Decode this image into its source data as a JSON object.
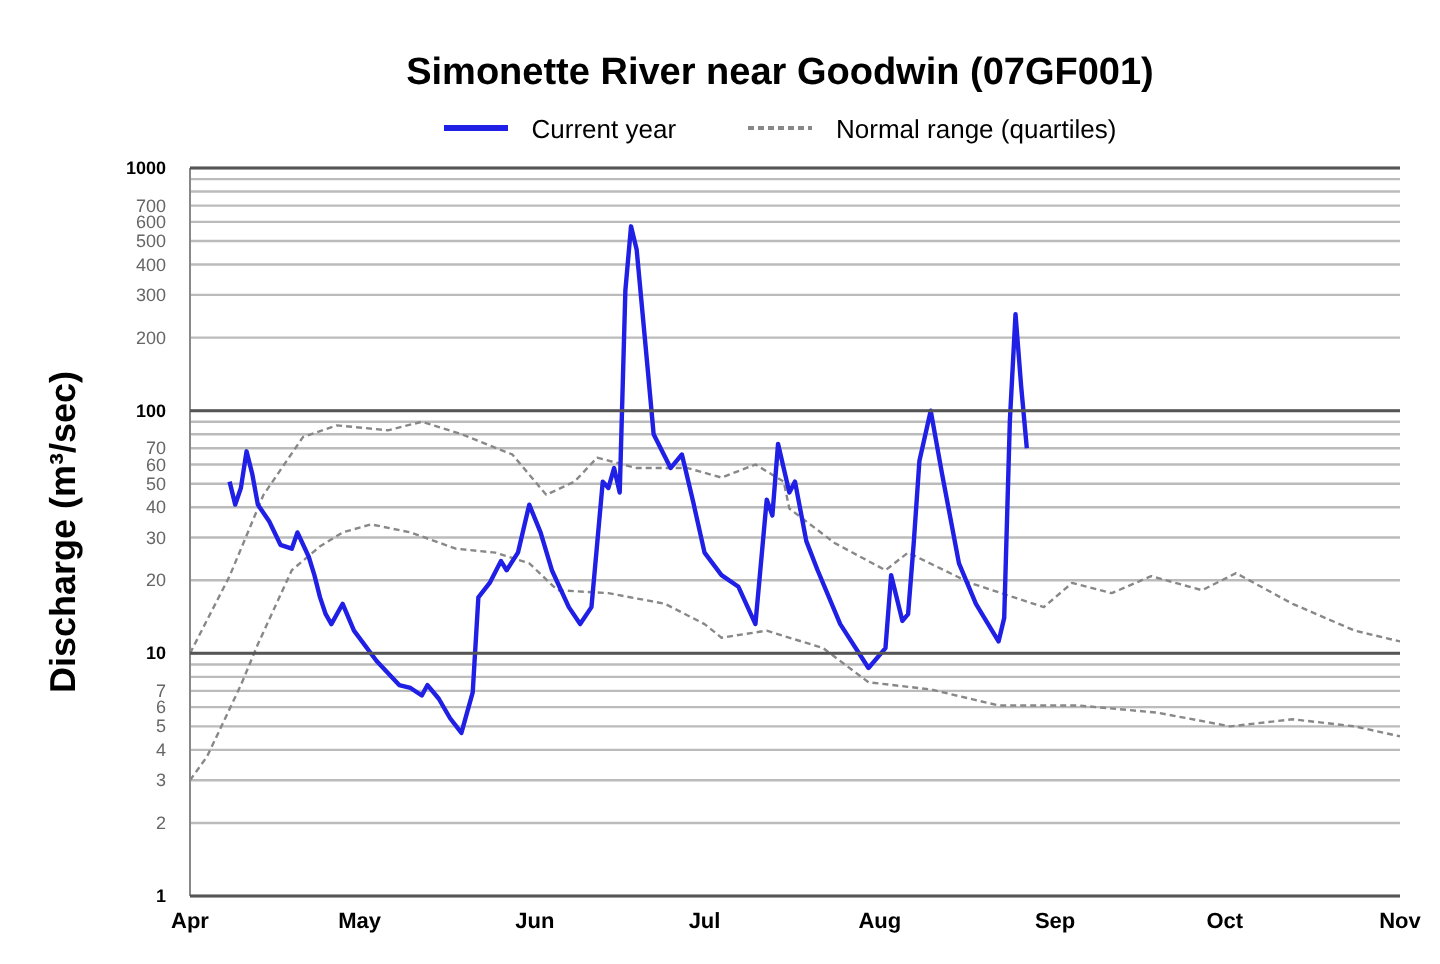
{
  "chart_data": {
    "type": "line",
    "title": "Simonette River near Goodwin (07GF001)",
    "ylabel": "Discharge (m³/sec)",
    "log": true,
    "grid": "y",
    "legend": "top",
    "marker": "none",
    "xlim": [
      "--04-01",
      "--11-01"
    ],
    "xticks": [
      {
        "value": "--04-01",
        "label": "Apr"
      },
      {
        "value": "--05-01",
        "label": "May"
      },
      {
        "value": "--06-01",
        "label": "Jun"
      },
      {
        "value": "--07-01",
        "label": "Jul"
      },
      {
        "value": "--08-01",
        "label": "Aug"
      },
      {
        "value": "--09-01",
        "label": "Sep"
      },
      {
        "value": "--10-01",
        "label": "Oct"
      },
      {
        "value": "--11-01",
        "label": "Nov"
      }
    ],
    "ylim": [
      1,
      1000
    ],
    "yticks": [
      1,
      2,
      3,
      4,
      5,
      6,
      7,
      {
        "value": 8,
        "label": null
      },
      {
        "value": 9,
        "label": null
      },
      10,
      20,
      30,
      40,
      50,
      60,
      70,
      {
        "value": 80,
        "label": null
      },
      {
        "value": 90,
        "label": null
      },
      100,
      200,
      300,
      400,
      500,
      600,
      700,
      {
        "value": 800,
        "label": null
      },
      {
        "value": 900,
        "label": null
      },
      1000
    ],
    "series": [
      {
        "name": "Normal range (quartiles)",
        "color": "#888888",
        "line_style": "dashed",
        "x": [
          "--04-01",
          "--04-08",
          "--04-14",
          "--04-21",
          "--04-27",
          "--05-06",
          "--05-12",
          "--05-19",
          "--05-28",
          "--06-03",
          "--06-08",
          "--06-12",
          "--06-19",
          "--06-28",
          "--07-04",
          "--07-10",
          "--07-15",
          "--07-16",
          "--07-24",
          "--08-02",
          "--08-06",
          "--08-17",
          "--08-30",
          "--09-04",
          "--09-11",
          "--09-18",
          "--09-27",
          "--10-03",
          "--10-13",
          "--10-24",
          "--11-01"
        ],
        "values": [
          10,
          20.8,
          45,
          78,
          87,
          83,
          90,
          80,
          66,
          45,
          51,
          64,
          58,
          58,
          53,
          60,
          51,
          39.5,
          28.5,
          22,
          26,
          19.5,
          15.5,
          19.5,
          17.7,
          20.8,
          18.2,
          21.4,
          16,
          12.4,
          11.2
        ]
      },
      {
        "color": "#888888",
        "line_style": "dashed",
        "x": [
          "--04-01",
          "--04-04",
          "--04-06",
          "--04-10",
          "--04-13",
          "--04-19",
          "--04-24",
          "--04-28",
          "--05-03",
          "--05-10",
          "--05-18",
          "--05-25",
          "--05-31",
          "--06-05",
          "--06-14",
          "--06-24",
          "--07-01",
          "--07-04",
          "--07-12",
          "--07-22",
          "--07-30",
          "--08-10",
          "--08-22",
          "--09-05",
          "--09-19",
          "--10-02",
          "--10-13",
          "--10-24",
          "--11-01"
        ],
        "values": [
          3,
          3.75,
          4.7,
          7.4,
          10.9,
          22,
          27.6,
          31.5,
          34,
          31.5,
          27,
          26,
          23.5,
          18.2,
          17.7,
          16,
          13.2,
          11.6,
          12.4,
          10.5,
          7.6,
          7.1,
          6.1,
          6.1,
          5.7,
          5,
          5.35,
          5,
          4.55
        ]
      },
      {
        "name": "Current year",
        "color": "#1f1fe6",
        "line_style": "solid",
        "x": [
          "--04-08",
          "--04-09",
          "--04-10",
          "--04-11",
          "--04-12",
          "--04-13",
          "--04-15",
          "--04-17",
          "--04-19",
          "--04-20",
          "--04-22",
          "--04-23",
          "--04-24",
          "--04-25",
          "--04-26",
          "--04-28",
          "--04-30",
          "--05-04",
          "--05-08",
          "--05-10",
          "--05-12",
          "--05-13",
          "--05-15",
          "--05-17",
          "--05-19",
          "--05-21",
          "--05-22",
          "--05-24",
          "--05-26",
          "--05-27",
          "--05-29",
          "--05-31",
          "--06-02",
          "--06-04",
          "--06-07",
          "--06-09",
          "--06-11",
          "--06-13",
          "--06-14",
          "--06-15",
          "--06-16",
          "--06-17",
          "--06-18",
          "--06-19",
          "--06-21",
          "--06-22",
          "--06-25",
          "--06-27",
          "--06-29",
          "--07-01",
          "--07-04",
          "--07-07",
          "--07-10",
          "--07-12",
          "--07-13",
          "--07-14",
          "--07-16",
          "--07-17",
          "--07-19",
          "--07-21",
          "--07-25",
          "--07-30",
          "--08-02",
          "--08-03",
          "--08-05",
          "--08-06",
          "--08-07",
          "--08-08",
          "--08-10",
          "--08-12",
          "--08-15",
          "--08-18",
          "--08-22",
          "--08-23",
          "--08-24",
          "--08-25",
          "--08-26",
          "--08-27"
        ],
        "values": [
          51,
          41,
          48,
          68,
          55,
          41,
          35,
          28,
          27,
          31.5,
          25,
          21,
          17,
          14.5,
          13.2,
          16,
          12.4,
          9.3,
          7.4,
          7.2,
          6.7,
          7.4,
          6.5,
          5.4,
          4.7,
          6.9,
          17,
          19.5,
          24,
          22,
          26,
          41,
          31.5,
          22,
          15.5,
          13.2,
          15.5,
          51,
          48,
          58,
          46,
          313,
          575,
          460,
          144,
          80,
          58,
          66,
          42,
          26,
          21,
          18.8,
          13.2,
          43,
          37,
          73,
          46,
          51,
          29,
          22,
          13.2,
          8.7,
          10.5,
          21,
          13.6,
          14.5,
          28.5,
          62,
          100,
          55,
          23.5,
          16,
          11.2,
          14,
          91,
          250,
          126,
          70
        ]
      }
    ]
  }
}
